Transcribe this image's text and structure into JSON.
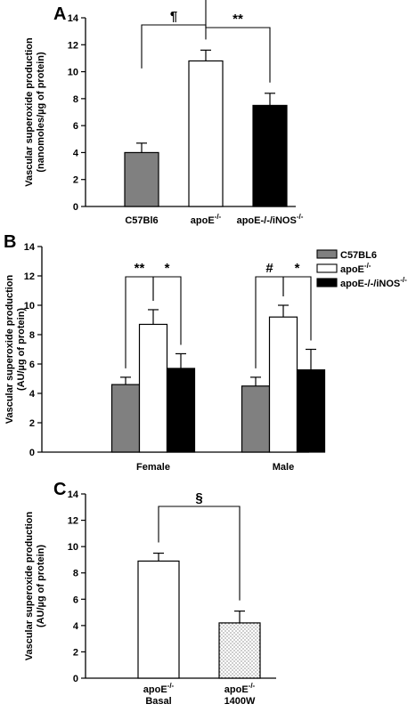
{
  "colors": {
    "C57BL6": "#808080",
    "apoE": "#ffffff",
    "apoE_iNOS": "#000000",
    "axis": "#000000"
  },
  "chart_data": [
    {
      "panel": "A",
      "type": "bar",
      "title": "",
      "ylabel_lines": [
        "Vascular superoxide production",
        "(nanomoles/µg of protein)"
      ],
      "ylim": [
        0,
        14
      ],
      "yticks": [
        0,
        2,
        4,
        6,
        8,
        10,
        12,
        14
      ],
      "categories": [
        {
          "main": "C57Bl6",
          "sup": ""
        },
        {
          "main": "apoE",
          "sup": "-/-"
        },
        {
          "main": "apoE-/-/iNOS",
          "sup": "-/-"
        }
      ],
      "values": [
        4.0,
        10.8,
        7.5
      ],
      "errors": [
        0.7,
        0.8,
        0.9
      ],
      "fills": [
        "C57BL6",
        "apoE",
        "apoE_iNOS"
      ],
      "significance": [
        {
          "from": 0,
          "to": 1,
          "label": "¶"
        },
        {
          "from": 1,
          "to": 2,
          "label": "**"
        }
      ]
    },
    {
      "panel": "B",
      "type": "bar",
      "title": "",
      "ylabel_lines": [
        "Vascular superoxide production",
        "(AU/µg of protein)"
      ],
      "ylim": [
        0,
        14
      ],
      "yticks": [
        0,
        2,
        4,
        6,
        8,
        10,
        12,
        14
      ],
      "categories": [
        "Female",
        "Male"
      ],
      "series": [
        {
          "name": "C57BL6",
          "values": [
            4.6,
            4.5
          ],
          "errors": [
            0.5,
            0.6
          ],
          "fill": "C57BL6"
        },
        {
          "name": "apoE-/-",
          "values": [
            8.7,
            9.2
          ],
          "errors": [
            1.0,
            0.8
          ],
          "fill": "apoE"
        },
        {
          "name": "apoE-/-/iNOS-/-",
          "values": [
            5.7,
            5.6
          ],
          "errors": [
            1.0,
            1.4
          ],
          "fill": "apoE_iNOS"
        }
      ],
      "legend": {
        "placement": "top-right",
        "entries": [
          {
            "main": "C57BL6",
            "sup": "",
            "fill": "C57BL6"
          },
          {
            "main": "apoE",
            "sup": "-/-",
            "fill": "apoE"
          },
          {
            "main": "apoE-/-/iNOS",
            "sup": "-/-",
            "fill": "apoE_iNOS"
          }
        ]
      },
      "significance": [
        {
          "group": 0,
          "from": 0,
          "to": 1,
          "label": "**"
        },
        {
          "group": 0,
          "from": 1,
          "to": 2,
          "label": "*"
        },
        {
          "group": 1,
          "from": 0,
          "to": 1,
          "label": "#"
        },
        {
          "group": 1,
          "from": 1,
          "to": 2,
          "label": "*"
        }
      ]
    },
    {
      "panel": "C",
      "type": "bar",
      "title": "",
      "ylabel_lines": [
        "Vascular superoxide production",
        "(AU/µg of protein)"
      ],
      "ylim": [
        0,
        14
      ],
      "yticks": [
        0,
        2,
        4,
        6,
        8,
        10,
        12,
        14
      ],
      "categories": [
        {
          "line1": "apoE",
          "sup": "-/-",
          "line2": "Basal"
        },
        {
          "line1": "apoE",
          "sup": "-/-",
          "line2": "1400W"
        }
      ],
      "values": [
        8.9,
        4.2
      ],
      "errors": [
        0.6,
        0.9
      ],
      "fills": [
        "apoE",
        "dotted"
      ],
      "significance": [
        {
          "from": 0,
          "to": 1,
          "label": "§"
        }
      ]
    }
  ]
}
